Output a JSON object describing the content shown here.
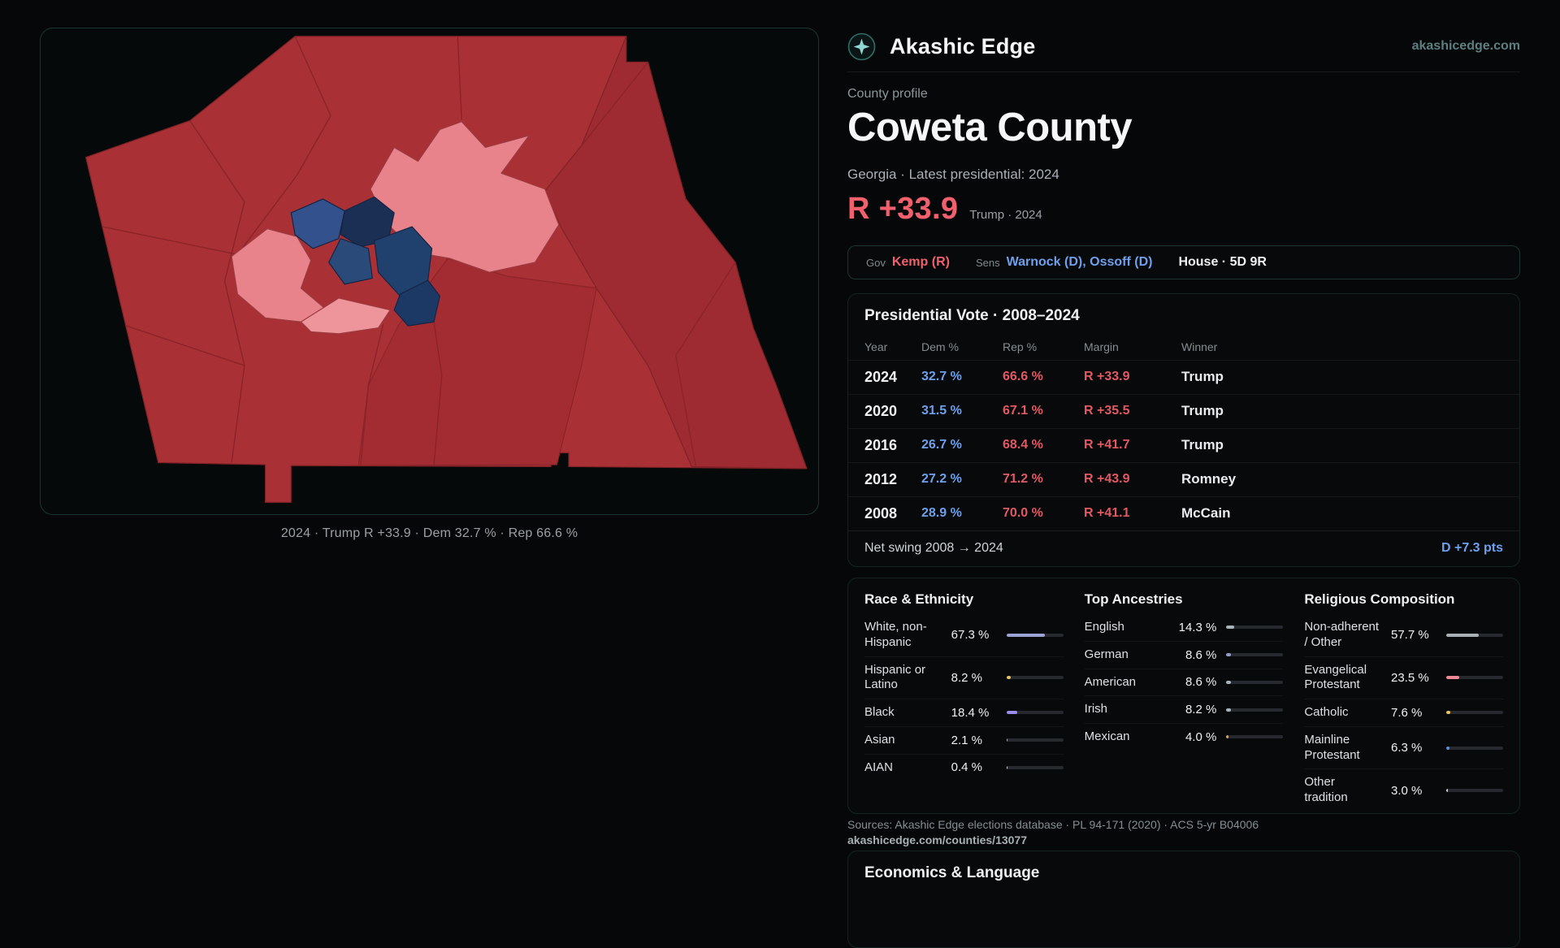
{
  "colors": {
    "accent_red": "#f2606e",
    "red_table": "#e25964",
    "accent_blue": "#6fa0ec",
    "teal": "#8fd8d2"
  },
  "brand": {
    "name": "Akashic Edge",
    "domain": "akashicedge.com"
  },
  "profile": {
    "kicker": "County profile",
    "title": "Coweta County",
    "subtitle": "Georgia · Latest presidential: 2024",
    "margin_big": "R +33.9",
    "margin_caption": "Trump · 2024"
  },
  "officials": {
    "gov_label": "Gov",
    "gov_value": "Kemp (R)",
    "sens_label": "Sens",
    "sens_value": "Warnock (D), Ossoff (D)",
    "house_value": "House · 5D 9R"
  },
  "map": {
    "caption": "2024 · Trump R +33.9 · Dem 32.7 % · Rep 66.6 %"
  },
  "presidential": {
    "title": "Presidential Vote · 2008–2024",
    "columns": [
      "Year",
      "Dem %",
      "Rep %",
      "Margin",
      "Winner"
    ],
    "rows": [
      {
        "year": "2024",
        "dem": "32.7 %",
        "rep": "66.6 %",
        "margin": "R +33.9",
        "winner": "Trump"
      },
      {
        "year": "2020",
        "dem": "31.5 %",
        "rep": "67.1 %",
        "margin": "R +35.5",
        "winner": "Trump"
      },
      {
        "year": "2016",
        "dem": "26.7 %",
        "rep": "68.4 %",
        "margin": "R +41.7",
        "winner": "Trump"
      },
      {
        "year": "2012",
        "dem": "27.2 %",
        "rep": "71.2 %",
        "margin": "R +43.9",
        "winner": "Romney"
      },
      {
        "year": "2008",
        "dem": "28.9 %",
        "rep": "70.0 %",
        "margin": "R +41.1",
        "winner": "McCain"
      }
    ],
    "net_swing_label": "Net swing 2008 → 2024",
    "net_swing_value": "D +7.3 pts"
  },
  "demographics": {
    "groups": [
      {
        "id": "race",
        "title": "Race & Ethnicity",
        "value_align": "left",
        "rows": [
          {
            "label": "White, non-Hispanic",
            "value": "67.3 %",
            "pct": 67.3,
            "color": "#9aa3d4"
          },
          {
            "label": "Hispanic or Latino",
            "value": "8.2 %",
            "pct": 8.2,
            "color": "#e6c35c"
          },
          {
            "label": "Black",
            "value": "18.4 %",
            "pct": 18.4,
            "color": "#9b8cf0"
          },
          {
            "label": "Asian",
            "value": "2.1 %",
            "pct": 2.1,
            "color": "#7fd8a8"
          },
          {
            "label": "AIAN",
            "value": "0.4 %",
            "pct": 0.4,
            "color": "#d7dadd"
          }
        ]
      },
      {
        "id": "ancestries",
        "title": "Top Ancestries",
        "value_align": "right",
        "rows": [
          {
            "label": "English",
            "value": "14.3 %",
            "pct": 14.3,
            "color": "#aab3ba"
          },
          {
            "label": "German",
            "value": "8.6 %",
            "pct": 8.6,
            "color": "#8f9bc9"
          },
          {
            "label": "American",
            "value": "8.6 %",
            "pct": 8.6,
            "color": "#aab3ba"
          },
          {
            "label": "Irish",
            "value": "8.2 %",
            "pct": 8.2,
            "color": "#aab3ba"
          },
          {
            "label": "Mexican",
            "value": "4.0 %",
            "pct": 4.0,
            "color": "#e0a14e"
          }
        ]
      },
      {
        "id": "religion",
        "title": "Religious Composition",
        "value_align": "left",
        "rows": [
          {
            "label": "Non-adherent / Other",
            "value": "57.7 %",
            "pct": 57.7,
            "color": "#a8b0b6"
          },
          {
            "label": "Evangelical Protestant",
            "value": "23.5 %",
            "pct": 23.5,
            "color": "#ef8a95"
          },
          {
            "label": "Catholic",
            "value": "7.6 %",
            "pct": 7.6,
            "color": "#e6c35c"
          },
          {
            "label": "Mainline Protestant",
            "value": "6.3 %",
            "pct": 6.3,
            "color": "#5c8fe6"
          },
          {
            "label": "Other tradition",
            "value": "3.0 %",
            "pct": 3.0,
            "color": "#c9ced2"
          }
        ]
      }
    ]
  },
  "sources": {
    "line1": "Sources: Akashic Edge elections database · PL 94-171 (2020) · ACS 5-yr B04006",
    "line2": "akashicedge.com/counties/13077"
  },
  "economics": {
    "title": "Economics & Language"
  }
}
